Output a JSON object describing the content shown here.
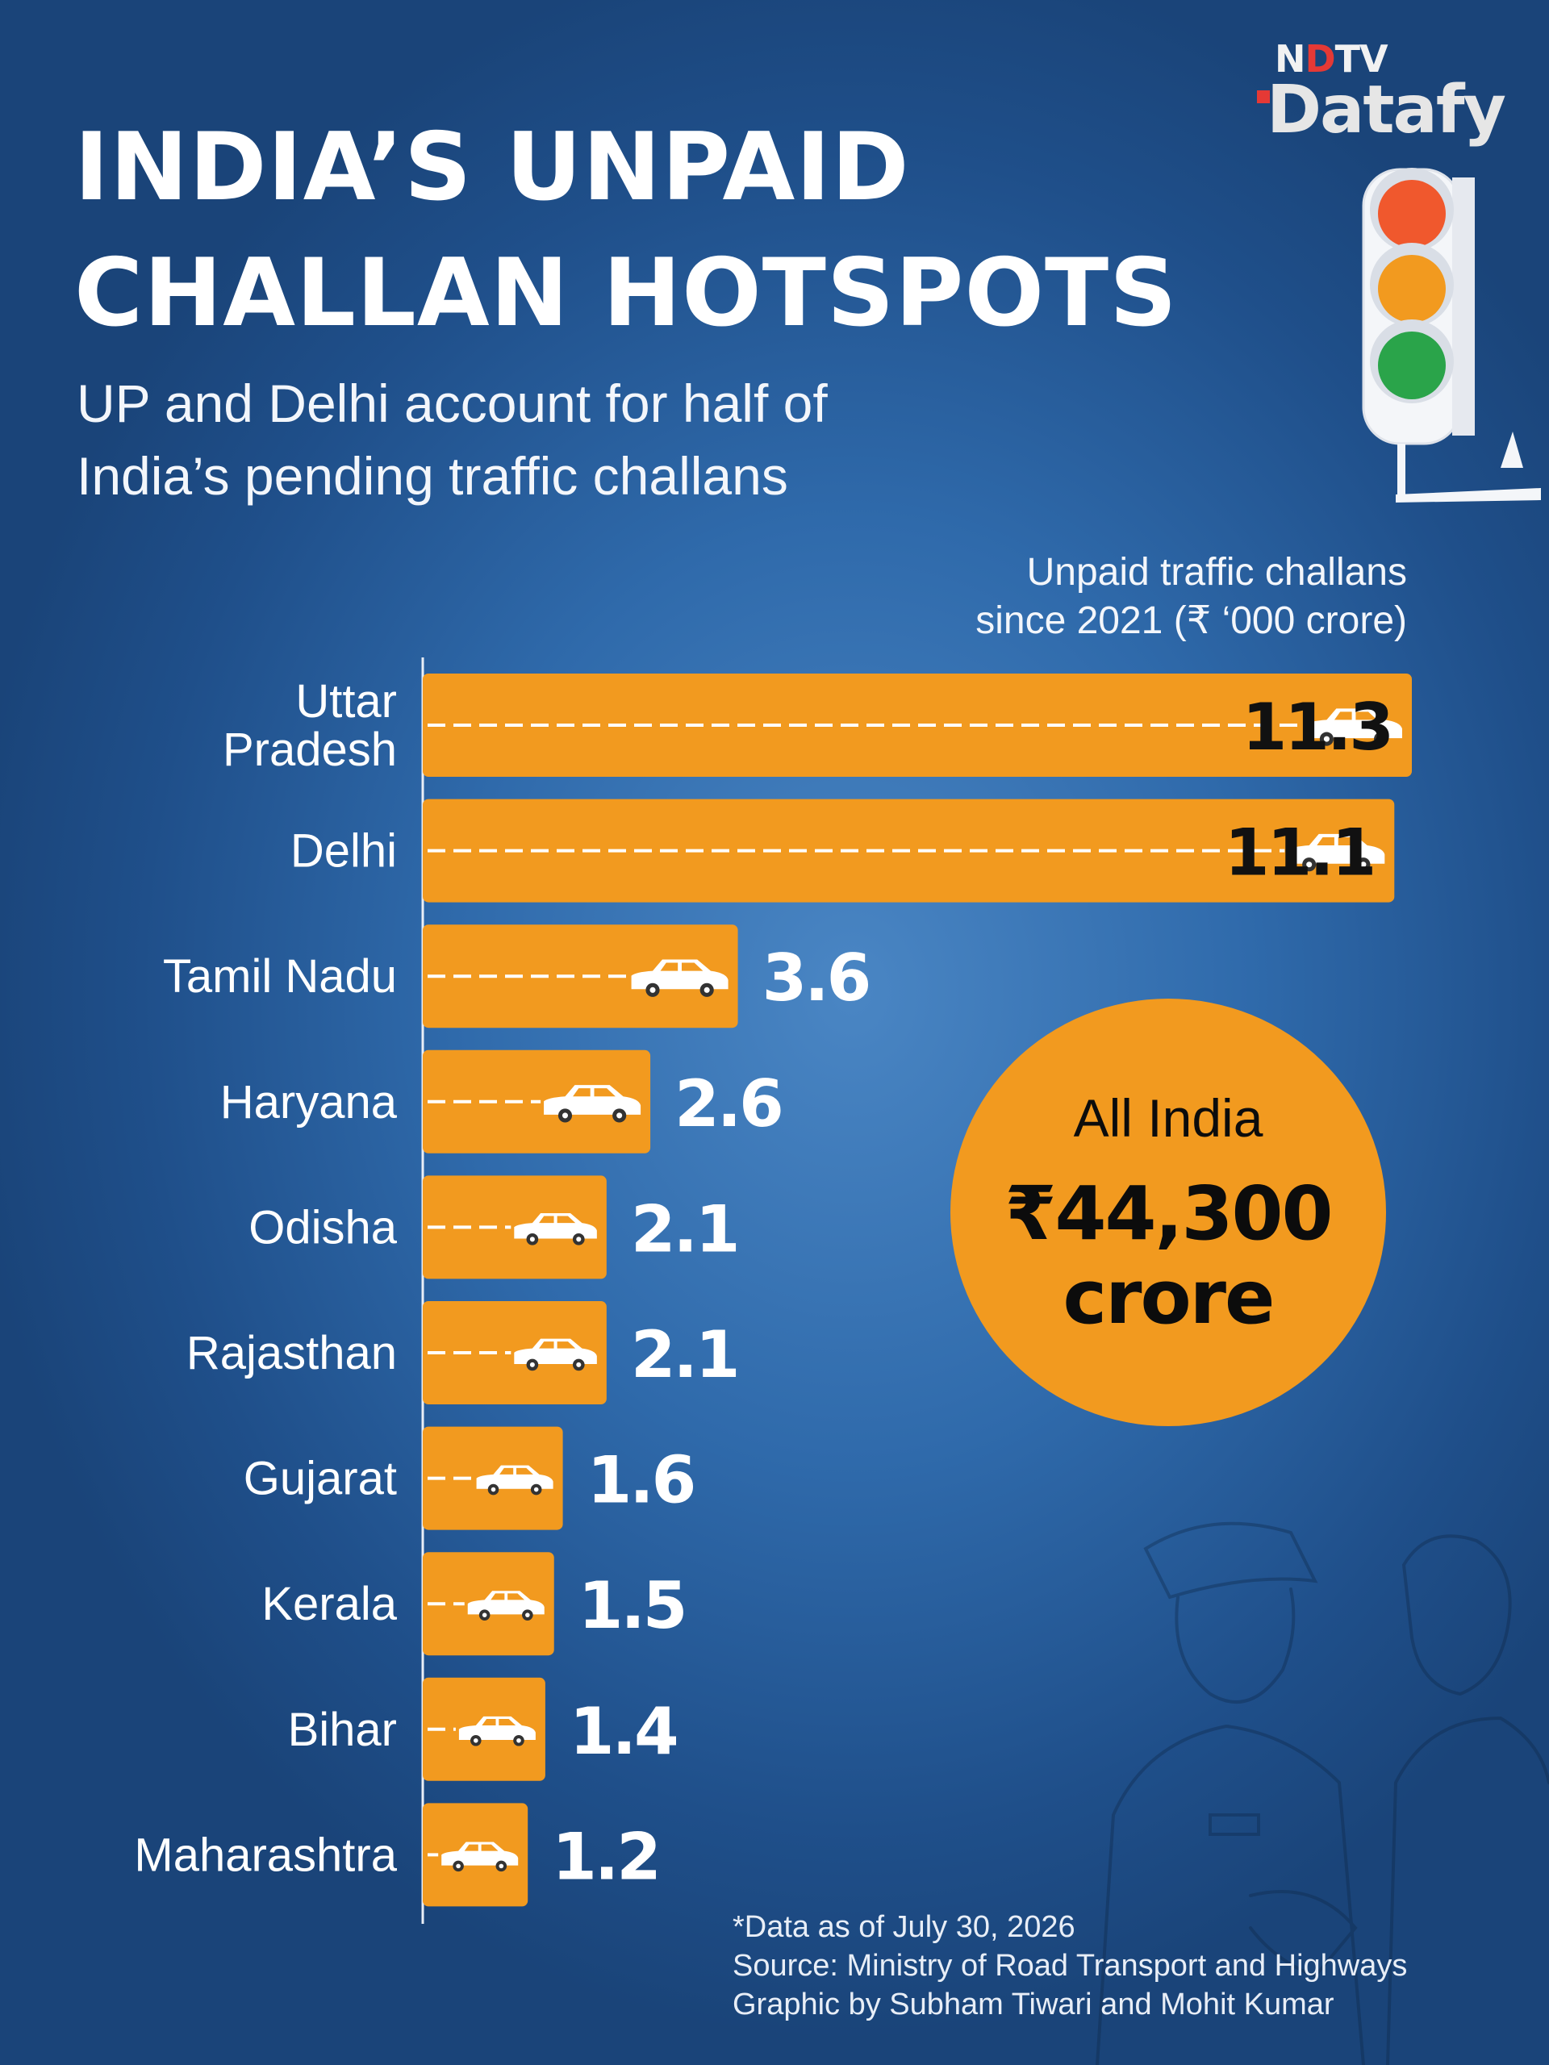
{
  "brand": {
    "line1_pre": "N",
    "line1_red": "D",
    "line1_post": "TV",
    "line2": "Datafy"
  },
  "title": "INDIA’S UNPAID\nCHALLAN HOTSPOTS",
  "subtitle": "UP and Delhi account for half of\nIndia’s pending traffic challans",
  "unit_label": "Unpaid traffic challans\nsince 2021 (₹ ‘000 crore)",
  "callout": {
    "label": "All India",
    "value": "₹44,300\ncrore"
  },
  "footnotes": {
    "date": "*Data as of July 30, 2026",
    "source": "Source: Ministry of Road Transport and Highways",
    "credit": "Graphic by Subham Tiwari and Mohit Kumar"
  },
  "colors": {
    "bar": "#f29a1f",
    "value_light": "#ffffff",
    "value_dark": "#111111",
    "traffic_red": "#f0582d",
    "traffic_amber": "#f29a1f",
    "traffic_green": "#2aa44a"
  },
  "icons": {
    "bar_marker": "car-icon",
    "header_decoration": "traffic-light-icon"
  },
  "chart_data": {
    "type": "bar",
    "orientation": "horizontal",
    "title": "INDIA’S UNPAID CHALLAN HOTSPOTS",
    "xlabel": "Unpaid traffic challans since 2021 (₹ ‘000 crore)",
    "categories": [
      "Uttar\nPradesh",
      "Delhi",
      "Tamil Nadu",
      "Haryana",
      "Odisha",
      "Rajasthan",
      "Gujarat",
      "Kerala",
      "Bihar",
      "Maharashtra"
    ],
    "values": [
      11.3,
      11.1,
      3.6,
      2.6,
      2.1,
      2.1,
      1.6,
      1.5,
      1.4,
      1.2
    ],
    "value_labels": [
      "11.3",
      "11.1",
      "3.6",
      "2.6",
      "2.1",
      "2.1",
      "1.6",
      "1.5",
      "1.4",
      "1.2"
    ],
    "xlim": [
      0,
      11.3
    ],
    "grid": false,
    "legend": "none"
  }
}
